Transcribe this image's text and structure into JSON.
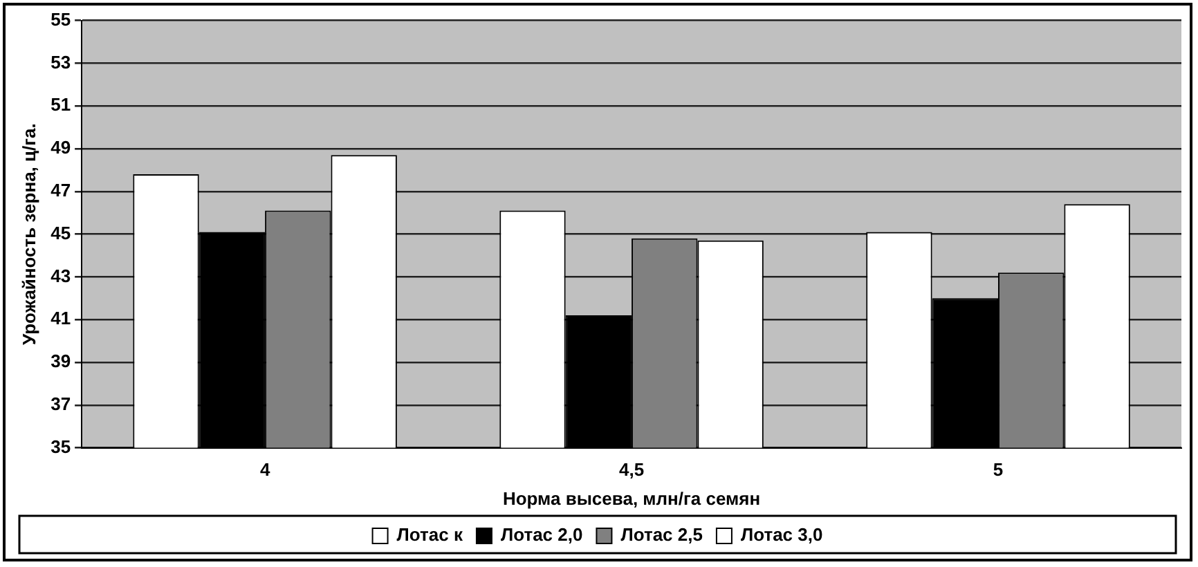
{
  "chart_data": {
    "type": "bar",
    "xlabel": "Норма высева, млн/га семян",
    "ylabel": "Урожайность зерна, ц/га.",
    "categories": [
      "4",
      "4,5",
      "5"
    ],
    "series": [
      {
        "name": "Лотас к",
        "color": "#ffffff",
        "values": [
          47.8,
          46.1,
          45.1
        ]
      },
      {
        "name": "Лотас 2,0",
        "color": "#000000",
        "values": [
          45.1,
          41.2,
          42.0
        ]
      },
      {
        "name": "Лотас 2,5",
        "color": "#808080",
        "values": [
          46.1,
          44.8,
          43.2
        ]
      },
      {
        "name": "Лотас 3,0",
        "color": "#ffffff",
        "values": [
          48.7,
          44.7,
          46.4
        ]
      }
    ],
    "ylim": [
      35,
      55
    ],
    "yticks": [
      35,
      37,
      39,
      41,
      43,
      45,
      47,
      49,
      51,
      53,
      55
    ],
    "grid": "y",
    "legend": "bottom"
  }
}
